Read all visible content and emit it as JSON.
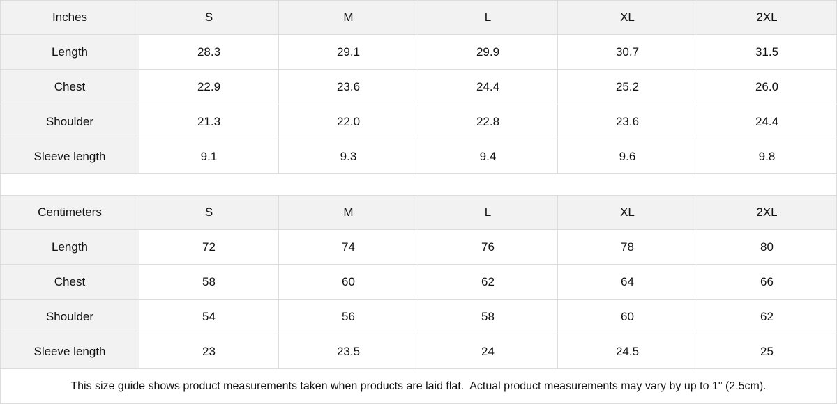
{
  "inches": {
    "header": [
      "Inches",
      "S",
      "M",
      "L",
      "XL",
      "2XL"
    ],
    "rows": [
      [
        "Length",
        "28.3",
        "29.1",
        "29.9",
        "30.7",
        "31.5"
      ],
      [
        "Chest",
        "22.9",
        "23.6",
        "24.4",
        "25.2",
        "26.0"
      ],
      [
        "Shoulder",
        "21.3",
        "22.0",
        "22.8",
        "23.6",
        "24.4"
      ],
      [
        "Sleeve length",
        "9.1",
        "9.3",
        "9.4",
        "9.6",
        "9.8"
      ]
    ]
  },
  "centimeters": {
    "header": [
      "Centimeters",
      "S",
      "M",
      "L",
      "XL",
      "2XL"
    ],
    "rows": [
      [
        "Length",
        "72",
        "74",
        "76",
        "78",
        "80"
      ],
      [
        "Chest",
        "58",
        "60",
        "62",
        "64",
        "66"
      ],
      [
        "Shoulder",
        "54",
        "56",
        "58",
        "60",
        "62"
      ],
      [
        "Sleeve length",
        "23",
        "23.5",
        "24",
        "24.5",
        "25"
      ]
    ]
  },
  "footer": {
    "note": "This size guide shows product measurements taken when products are laid flat.  Actual product measurements may vary by up to 1\" (2.5cm)."
  }
}
